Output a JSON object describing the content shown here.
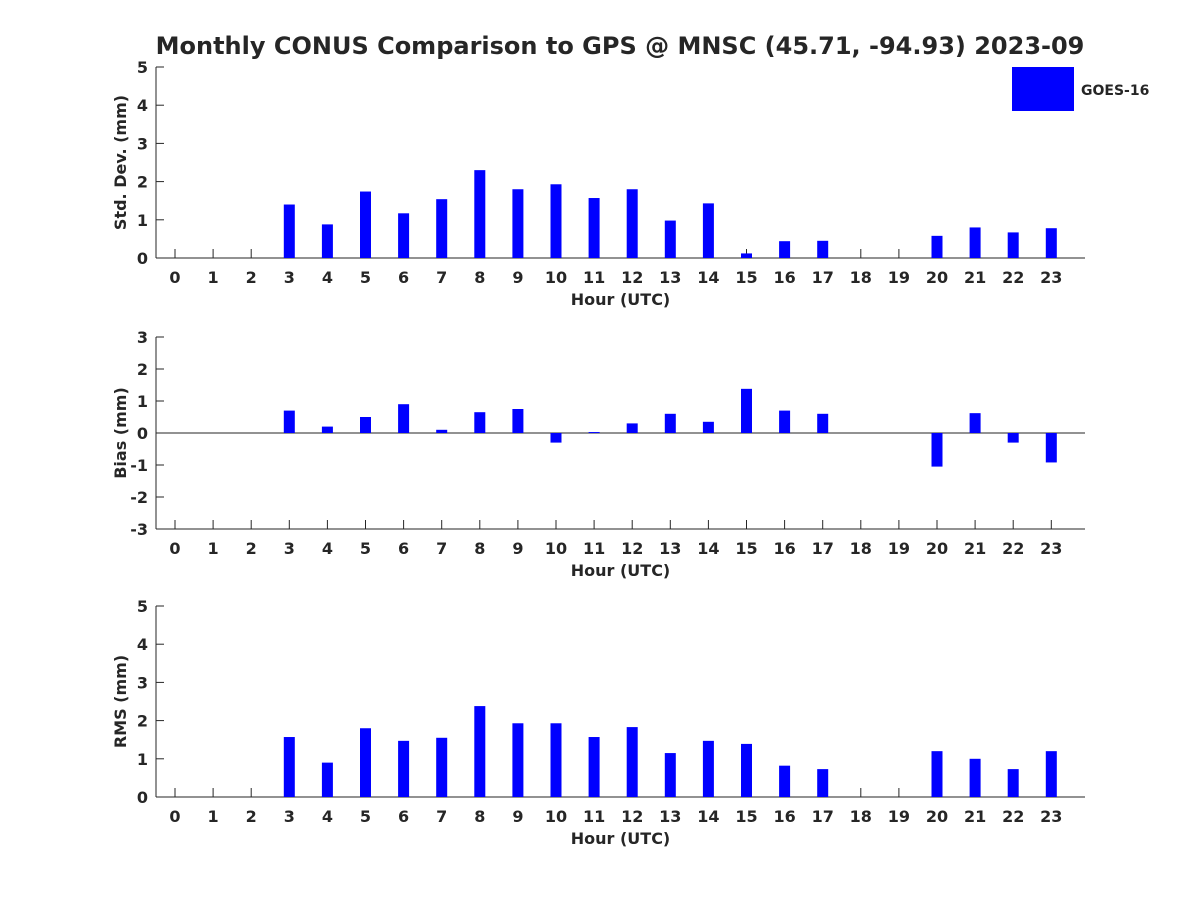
{
  "chart_data": {
    "type": "bar",
    "title": "Monthly CONUS Comparison to GPS @ MNSC (45.71, -94.93) 2023-09",
    "legend": {
      "placement": "top-right",
      "entries": [
        "GOES-16"
      ]
    },
    "series_color": "#0000ff",
    "axis_color": "#262626",
    "categories": [
      "0",
      "1",
      "2",
      "3",
      "4",
      "5",
      "6",
      "7",
      "8",
      "9",
      "10",
      "11",
      "12",
      "13",
      "14",
      "15",
      "16",
      "17",
      "18",
      "19",
      "20",
      "21",
      "22",
      "23"
    ],
    "panels": [
      {
        "name": "std-dev",
        "ylabel": "Std. Dev. (mm)",
        "xlabel": "Hour (UTC)",
        "ylim": [
          0,
          5
        ],
        "yticks": [
          "0",
          "1",
          "2",
          "3",
          "4",
          "5"
        ],
        "values": [
          null,
          null,
          null,
          1.4,
          0.88,
          1.74,
          1.17,
          1.54,
          2.3,
          1.8,
          1.93,
          1.57,
          1.8,
          0.98,
          1.43,
          0.12,
          0.44,
          0.45,
          null,
          null,
          0.58,
          0.8,
          0.67,
          0.78
        ]
      },
      {
        "name": "bias",
        "ylabel": "Bias (mm)",
        "xlabel": "Hour (UTC)",
        "ylim": [
          -3,
          3
        ],
        "yticks": [
          "-3",
          "-2",
          "-1",
          "0",
          "1",
          "2",
          "3"
        ],
        "values": [
          null,
          null,
          null,
          0.7,
          0.2,
          0.5,
          0.9,
          0.1,
          0.65,
          0.75,
          -0.3,
          0.03,
          0.3,
          0.6,
          0.35,
          1.38,
          0.7,
          0.6,
          null,
          null,
          -1.05,
          0.62,
          -0.3,
          -0.92
        ]
      },
      {
        "name": "rms",
        "ylabel": "RMS (mm)",
        "xlabel": "Hour (UTC)",
        "ylim": [
          0,
          5
        ],
        "yticks": [
          "0",
          "1",
          "2",
          "3",
          "4",
          "5"
        ],
        "values": [
          null,
          null,
          null,
          1.57,
          0.9,
          1.8,
          1.47,
          1.55,
          2.38,
          1.93,
          1.93,
          1.57,
          1.83,
          1.15,
          1.47,
          1.39,
          0.82,
          0.73,
          null,
          null,
          1.2,
          1.0,
          0.73,
          1.2
        ]
      }
    ]
  }
}
